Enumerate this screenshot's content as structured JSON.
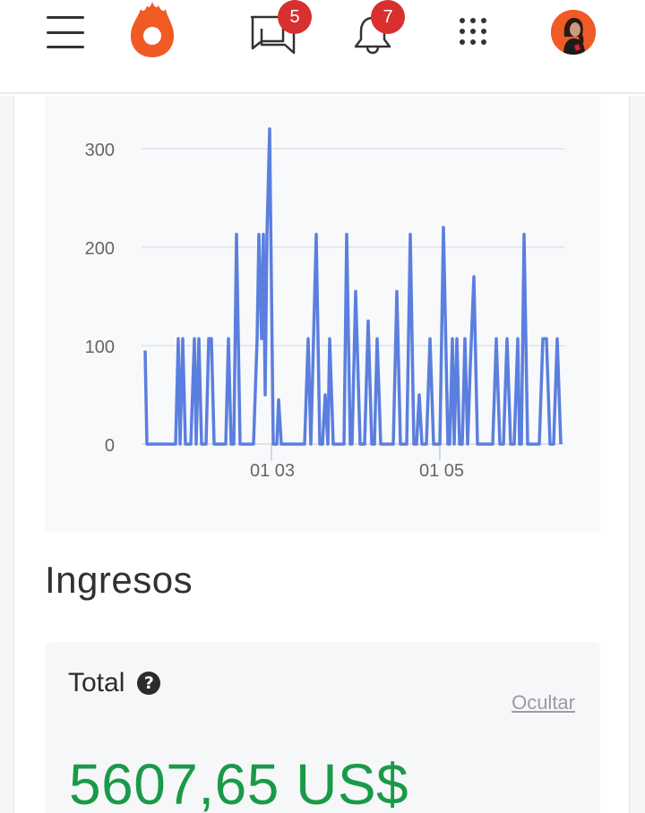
{
  "header": {
    "menu_icon": "hamburger-menu-icon",
    "logo_icon": "hotmart-flame-icon",
    "messages": {
      "icon": "chat-bubbles-icon",
      "badge": "5"
    },
    "notifications": {
      "icon": "bell-icon",
      "badge": "7"
    },
    "apps_icon": "grid-dots-icon",
    "avatar_icon": "user-avatar"
  },
  "colors": {
    "brand": "#f05a24",
    "badge": "#d8302f",
    "chart_line": "#5b7fde",
    "total_value": "#1a9a48",
    "link": "#9a9ca0"
  },
  "chart_data": {
    "type": "line",
    "title": "",
    "xlabel": "",
    "ylabel": "",
    "ylim": [
      0,
      320
    ],
    "y_ticks": [
      "0",
      "100",
      "200",
      "300"
    ],
    "x_ticks": [
      "01 03",
      "01 05"
    ],
    "grid": true,
    "legend": "none",
    "points": [
      [
        162,
        95
      ],
      [
        164,
        0
      ],
      [
        196,
        0
      ],
      [
        199,
        107
      ],
      [
        201,
        0
      ],
      [
        204,
        107
      ],
      [
        207,
        0
      ],
      [
        213,
        0
      ],
      [
        217,
        107
      ],
      [
        219,
        0
      ],
      [
        222,
        107
      ],
      [
        225,
        0
      ],
      [
        230,
        0
      ],
      [
        233,
        107
      ],
      [
        236,
        107
      ],
      [
        239,
        0
      ],
      [
        252,
        0
      ],
      [
        255,
        107
      ],
      [
        258,
        0
      ],
      [
        261,
        0
      ],
      [
        264,
        213
      ],
      [
        268,
        0
      ],
      [
        283,
        0
      ],
      [
        287,
        107
      ],
      [
        289,
        213
      ],
      [
        292,
        107
      ],
      [
        294,
        213
      ],
      [
        296,
        50
      ],
      [
        298,
        213
      ],
      [
        301,
        320
      ],
      [
        305,
        0
      ],
      [
        309,
        0
      ],
      [
        311,
        45
      ],
      [
        314,
        0
      ],
      [
        340,
        0
      ],
      [
        344,
        107
      ],
      [
        347,
        0
      ],
      [
        350,
        107
      ],
      [
        353,
        213
      ],
      [
        357,
        0
      ],
      [
        360,
        0
      ],
      [
        363,
        50
      ],
      [
        366,
        0
      ],
      [
        368,
        107
      ],
      [
        372,
        0
      ],
      [
        384,
        0
      ],
      [
        387,
        213
      ],
      [
        391,
        0
      ],
      [
        393,
        0
      ],
      [
        397,
        155
      ],
      [
        402,
        0
      ],
      [
        407,
        0
      ],
      [
        411,
        125
      ],
      [
        415,
        0
      ],
      [
        418,
        0
      ],
      [
        421,
        107
      ],
      [
        425,
        0
      ],
      [
        439,
        0
      ],
      [
        443,
        155
      ],
      [
        447,
        0
      ],
      [
        454,
        0
      ],
      [
        458,
        213
      ],
      [
        462,
        0
      ],
      [
        465,
        0
      ],
      [
        468,
        50
      ],
      [
        471,
        0
      ],
      [
        476,
        0
      ],
      [
        480,
        107
      ],
      [
        484,
        0
      ],
      [
        491,
        0
      ],
      [
        495,
        220
      ],
      [
        500,
        0
      ],
      [
        502,
        0
      ],
      [
        505,
        107
      ],
      [
        507,
        0
      ],
      [
        510,
        107
      ],
      [
        513,
        0
      ],
      [
        516,
        0
      ],
      [
        519,
        107
      ],
      [
        522,
        0
      ],
      [
        525,
        80
      ],
      [
        529,
        170
      ],
      [
        533,
        0
      ],
      [
        550,
        0
      ],
      [
        554,
        107
      ],
      [
        558,
        0
      ],
      [
        562,
        0
      ],
      [
        566,
        107
      ],
      [
        570,
        0
      ],
      [
        574,
        0
      ],
      [
        578,
        107
      ],
      [
        580,
        0
      ],
      [
        582,
        0
      ],
      [
        585,
        213
      ],
      [
        589,
        0
      ],
      [
        602,
        0
      ],
      [
        606,
        107
      ],
      [
        610,
        107
      ],
      [
        614,
        0
      ],
      [
        618,
        0
      ],
      [
        622,
        107
      ],
      [
        626,
        0
      ]
    ],
    "points_note": "x = horizontal pixel position within page, y = value (units)"
  },
  "section": {
    "title": "Ingresos"
  },
  "total_card": {
    "label": "Total",
    "help_icon": "question-mark-icon",
    "hide_link": "Ocultar",
    "value": "5607,65 US$"
  }
}
